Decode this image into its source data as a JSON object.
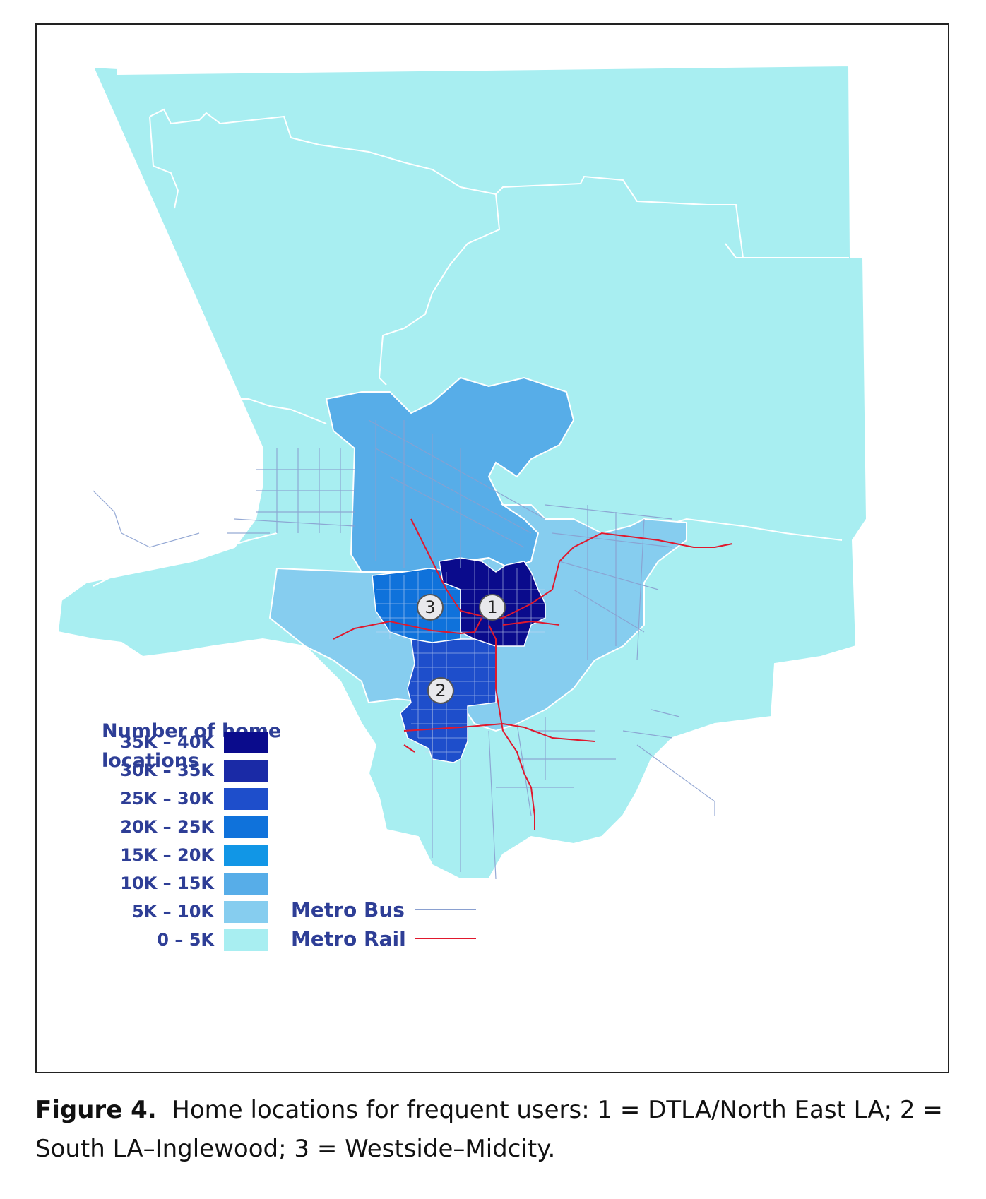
{
  "legend": {
    "title": "Number of home locations",
    "bins": [
      {
        "label": "35K – 40K",
        "color": "#0a0b8c"
      },
      {
        "label": "30K – 35K",
        "color": "#1a2aa6"
      },
      {
        "label": "25K – 30K",
        "color": "#1e4ecb"
      },
      {
        "label": "20K – 25K",
        "color": "#0f72db"
      },
      {
        "label": "15K – 20K",
        "color": "#1196e6"
      },
      {
        "label": "10K – 15K",
        "color": "#57ade8"
      },
      {
        "label": "5K – 10K",
        "color": "#86cdef"
      },
      {
        "label": "0 – 5K",
        "color": "#a8eef1"
      }
    ]
  },
  "lines": {
    "bus": {
      "label": "Metro Bus",
      "color": "#8aa0d0"
    },
    "rail": {
      "label": "Metro Rail",
      "color": "#e0182d"
    }
  },
  "markers": {
    "dtla": "1",
    "south_la": "2",
    "westside": "3"
  },
  "caption": {
    "figure_label": "Figure 4.",
    "text": "Home locations for frequent users: 1 = DTLA/North East LA; 2 = South LA–Inglewood; 3 = Westside–Midcity."
  }
}
